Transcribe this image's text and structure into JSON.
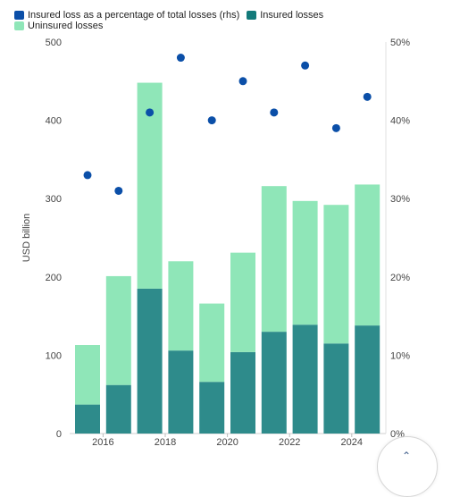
{
  "chart_data": {
    "type": "bar",
    "stacked": true,
    "title": "",
    "xlabel": "",
    "ylabel": "USD billion",
    "ylim": [
      0,
      500
    ],
    "y_ticks": [
      0,
      100,
      200,
      300,
      400,
      500
    ],
    "y2lim": [
      0,
      50
    ],
    "y2_ticks": [
      "0%",
      "10%",
      "20%",
      "30%",
      "40%",
      "50%"
    ],
    "x_tick_labels": [
      "2016",
      "2018",
      "2020",
      "2022",
      "2024"
    ],
    "categories": [
      "2015",
      "2016",
      "2017",
      "2018",
      "2019",
      "2020",
      "2021",
      "2022",
      "2023",
      "2024"
    ],
    "series": [
      {
        "name": "Insured losses",
        "role": "bar-bottom",
        "color": "#2e8b8b",
        "values": [
          37,
          62,
          185,
          106,
          66,
          104,
          130,
          139,
          115,
          138
        ]
      },
      {
        "name": "Uninsured losses",
        "role": "bar-top",
        "color": "#8fe6b8",
        "values": [
          76,
          139,
          263,
          114,
          100,
          127,
          186,
          158,
          177,
          180
        ]
      },
      {
        "name": "Insured loss as a percentage of total losses (rhs)",
        "role": "dots-rhs",
        "color": "#0b4fa8",
        "values": [
          33,
          31,
          41,
          48,
          40,
          45,
          41,
          47,
          39,
          43
        ]
      }
    ],
    "grid": false,
    "legend_position": "top-left"
  },
  "legend": {
    "items": [
      {
        "label": "Insured loss as a percentage of total losses (rhs)",
        "color": "#0b4fa8"
      },
      {
        "label": "Insured losses",
        "color": "#137a7a"
      },
      {
        "label": "Uninsured losses",
        "color": "#8fe6b8"
      }
    ]
  },
  "icons": {
    "scroll_up": "chevron-up-icon"
  }
}
